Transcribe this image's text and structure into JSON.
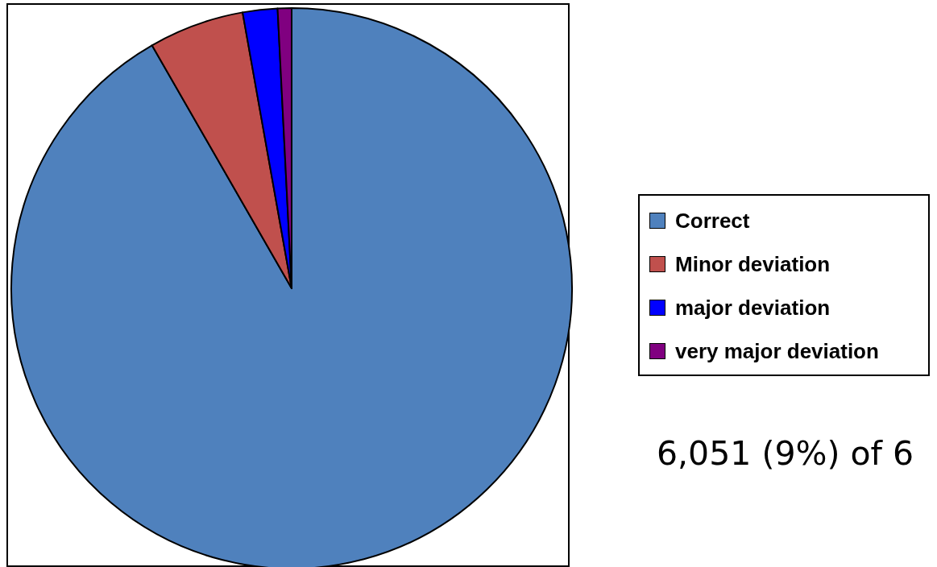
{
  "chart_data": {
    "type": "pie",
    "categories": [
      "Correct",
      "Minor deviation",
      "major deviation",
      "very major deviation"
    ],
    "values": [
      91.7,
      5.5,
      2.0,
      0.8
    ],
    "colors": [
      "#4f81bd",
      "#c0504d",
      "#0000ff",
      "#800080"
    ],
    "legend": "right",
    "annotations": [
      "6,051 (9%) of 6"
    ]
  }
}
